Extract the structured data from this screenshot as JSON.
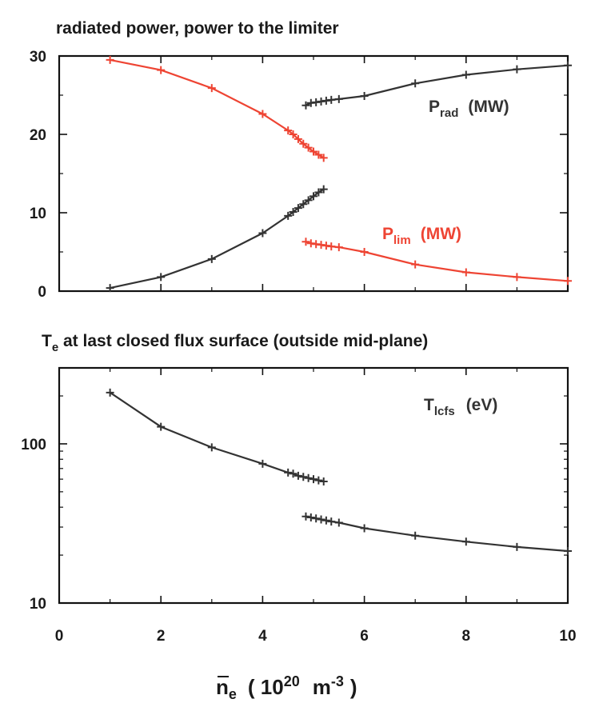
{
  "chart_data": [
    {
      "type": "line",
      "title": "radiated power, power to the limiter",
      "xlim": [
        0,
        10
      ],
      "ylim": [
        0,
        30
      ],
      "x_ticks": [
        "0",
        "2",
        "4",
        "6",
        "8",
        "10"
      ],
      "y_ticks": [
        "0",
        "10",
        "20",
        "30"
      ],
      "grid": false,
      "series": [
        {
          "name": "P_rad (MW)",
          "label": {
            "main": "P",
            "sub": "rad",
            "unit": "(MW)"
          },
          "color": "#333333",
          "segments": [
            [
              [
                1,
                0.4
              ],
              [
                2,
                1.8
              ],
              [
                3,
                4.1
              ],
              [
                4,
                7.4
              ],
              [
                4.5,
                9.6
              ],
              [
                4.6,
                10.1
              ],
              [
                4.7,
                10.6
              ],
              [
                4.8,
                11.1
              ],
              [
                4.9,
                11.6
              ],
              [
                5.0,
                12.1
              ],
              [
                5.1,
                12.6
              ],
              [
                5.2,
                13.0
              ]
            ],
            [
              [
                4.85,
                23.7
              ],
              [
                4.95,
                24.0
              ],
              [
                5.05,
                24.1
              ],
              [
                5.15,
                24.2
              ],
              [
                5.25,
                24.3
              ],
              [
                5.35,
                24.4
              ],
              [
                5.5,
                24.5
              ],
              [
                6,
                24.9
              ],
              [
                7,
                26.5
              ],
              [
                8,
                27.6
              ],
              [
                9,
                28.3
              ],
              [
                10,
                28.8
              ]
            ]
          ]
        },
        {
          "name": "P_lim (MW)",
          "label": {
            "main": "P",
            "sub": "lim",
            "unit": "(MW)"
          },
          "color": "#ee4433",
          "segments": [
            [
              [
                1,
                29.5
              ],
              [
                2,
                28.2
              ],
              [
                3,
                25.9
              ],
              [
                4,
                22.6
              ],
              [
                4.5,
                20.5
              ],
              [
                4.6,
                20.0
              ],
              [
                4.7,
                19.4
              ],
              [
                4.8,
                18.8
              ],
              [
                4.9,
                18.3
              ],
              [
                5.0,
                17.8
              ],
              [
                5.1,
                17.4
              ],
              [
                5.2,
                17.0
              ]
            ],
            [
              [
                4.85,
                6.3
              ],
              [
                4.95,
                6.1
              ],
              [
                5.05,
                6.0
              ],
              [
                5.15,
                5.9
              ],
              [
                5.25,
                5.8
              ],
              [
                5.35,
                5.7
              ],
              [
                5.5,
                5.6
              ],
              [
                6,
                5.0
              ],
              [
                7,
                3.4
              ],
              [
                8,
                2.4
              ],
              [
                9,
                1.8
              ],
              [
                10,
                1.3
              ]
            ]
          ]
        }
      ]
    },
    {
      "type": "line",
      "title_main": "T",
      "title_sub": "e",
      "title_rest": " at last closed flux surface (outside mid-plane)",
      "yscale": "log",
      "xlim": [
        0,
        10
      ],
      "ylim": [
        10,
        300
      ],
      "x_ticks": [
        "0",
        "2",
        "4",
        "6",
        "8",
        "10"
      ],
      "y_ticks": [
        "10",
        "100"
      ],
      "grid": false,
      "series": [
        {
          "name": "T_lcfs (eV)",
          "label": {
            "main": "T",
            "sub": "lcfs",
            "unit": "(eV)"
          },
          "color": "#333333",
          "segments": [
            [
              [
                1,
                210
              ],
              [
                2,
                128
              ],
              [
                3,
                95
              ],
              [
                4,
                75
              ],
              [
                4.5,
                66
              ],
              [
                4.6,
                65
              ],
              [
                4.7,
                63
              ],
              [
                4.8,
                62
              ],
              [
                4.9,
                61
              ],
              [
                5.0,
                60
              ],
              [
                5.1,
                59
              ],
              [
                5.2,
                58
              ]
            ],
            [
              [
                4.85,
                35
              ],
              [
                4.95,
                34.5
              ],
              [
                5.05,
                34
              ],
              [
                5.15,
                33.5
              ],
              [
                5.25,
                33
              ],
              [
                5.35,
                32.5
              ],
              [
                5.5,
                32
              ],
              [
                6,
                29.5
              ],
              [
                7,
                26.5
              ],
              [
                8,
                24.3
              ],
              [
                9,
                22.5
              ],
              [
                10,
                21.2
              ]
            ]
          ]
        }
      ]
    }
  ],
  "xlabel": {
    "main": "n",
    "sub": "e",
    "open": "( 10",
    "exp": "20",
    "unit": "m",
    "unit_exp": "-3",
    "close": ")"
  }
}
